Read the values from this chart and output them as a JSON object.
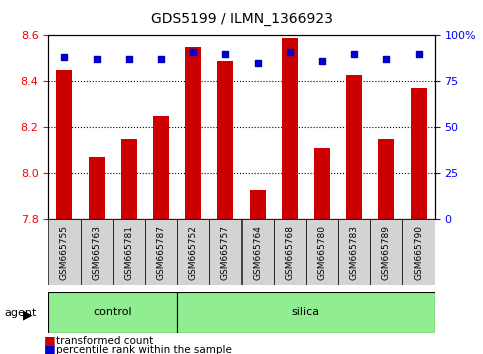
{
  "title": "GDS5199 / ILMN_1366923",
  "samples": [
    "GSM665755",
    "GSM665763",
    "GSM665781",
    "GSM665787",
    "GSM665752",
    "GSM665757",
    "GSM665764",
    "GSM665768",
    "GSM665780",
    "GSM665783",
    "GSM665789",
    "GSM665790"
  ],
  "transformed_counts": [
    8.45,
    8.07,
    8.15,
    8.25,
    8.55,
    8.49,
    7.93,
    8.59,
    8.11,
    8.43,
    8.15,
    8.37
  ],
  "percentile_ranks": [
    88,
    87,
    87,
    87,
    91,
    90,
    85,
    91,
    86,
    90,
    87,
    90
  ],
  "bar_color": "#cc0000",
  "dot_color": "#0000cc",
  "ymin": 7.8,
  "ymax": 8.6,
  "yticks": [
    7.8,
    8.0,
    8.2,
    8.4,
    8.6
  ],
  "right_yticks": [
    0,
    25,
    50,
    75,
    100
  ],
  "right_yticklabels": [
    "0",
    "25",
    "50",
    "75",
    "100%"
  ],
  "background_color": "#ffffff",
  "xticklabel_bg": "#d3d3d3",
  "bar_width": 0.5,
  "group_defs": [
    {
      "label": "control",
      "start": 0,
      "end": 3
    },
    {
      "label": "silica",
      "start": 4,
      "end": 11
    }
  ]
}
